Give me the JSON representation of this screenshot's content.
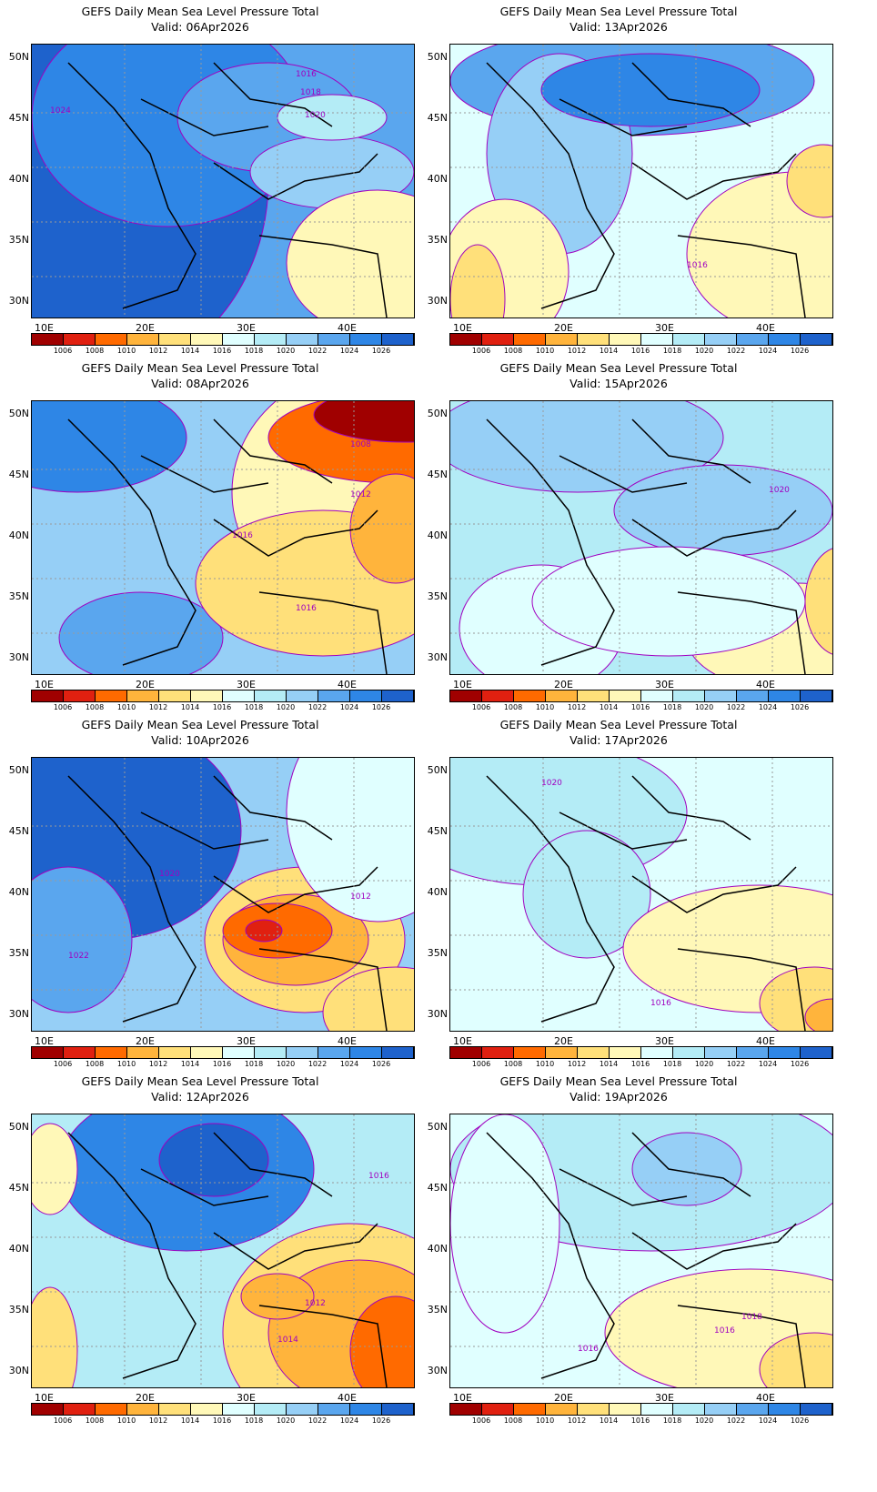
{
  "panel_title": "GEFS Daily Mean Sea Level Pressure Total",
  "panels": [
    {
      "valid": "Valid: 06Apr2026",
      "contour_labels": [
        "1016",
        "1018",
        "1020",
        "1024"
      ]
    },
    {
      "valid": "Valid: 13Apr2026",
      "contour_labels": [
        "1016"
      ]
    },
    {
      "valid": "Valid: 08Apr2026",
      "contour_labels": [
        "1008",
        "1012",
        "1016",
        "1016"
      ]
    },
    {
      "valid": "Valid: 15Apr2026",
      "contour_labels": [
        "1020"
      ]
    },
    {
      "valid": "Valid: 10Apr2026",
      "contour_labels": [
        "1012",
        "1020",
        "1022"
      ]
    },
    {
      "valid": "Valid: 17Apr2026",
      "contour_labels": [
        "1020",
        "1016"
      ]
    },
    {
      "valid": "Valid: 12Apr2026",
      "contour_labels": [
        "1016",
        "1012",
        "1014"
      ]
    },
    {
      "valid": "Valid: 19Apr2026",
      "contour_labels": [
        "1018",
        "1016",
        "1016"
      ]
    }
  ],
  "lat_labels": [
    "50N",
    "45N",
    "40N",
    "35N",
    "30N"
  ],
  "lon_labels": [
    "10E",
    "20E",
    "30E",
    "40E"
  ],
  "colorbar": {
    "labels": [
      "1006",
      "1008",
      "1010",
      "1012",
      "1014",
      "1016",
      "1018",
      "1020",
      "1022",
      "1024",
      "1026"
    ],
    "colors": [
      "#a00000",
      "#e02010",
      "#ff6a00",
      "#ffb43c",
      "#ffe07a",
      "#fff8b8",
      "#e0ffff",
      "#b4ecf6",
      "#96cff6",
      "#5aa6ee",
      "#2e86e6",
      "#1e62cc"
    ]
  }
}
